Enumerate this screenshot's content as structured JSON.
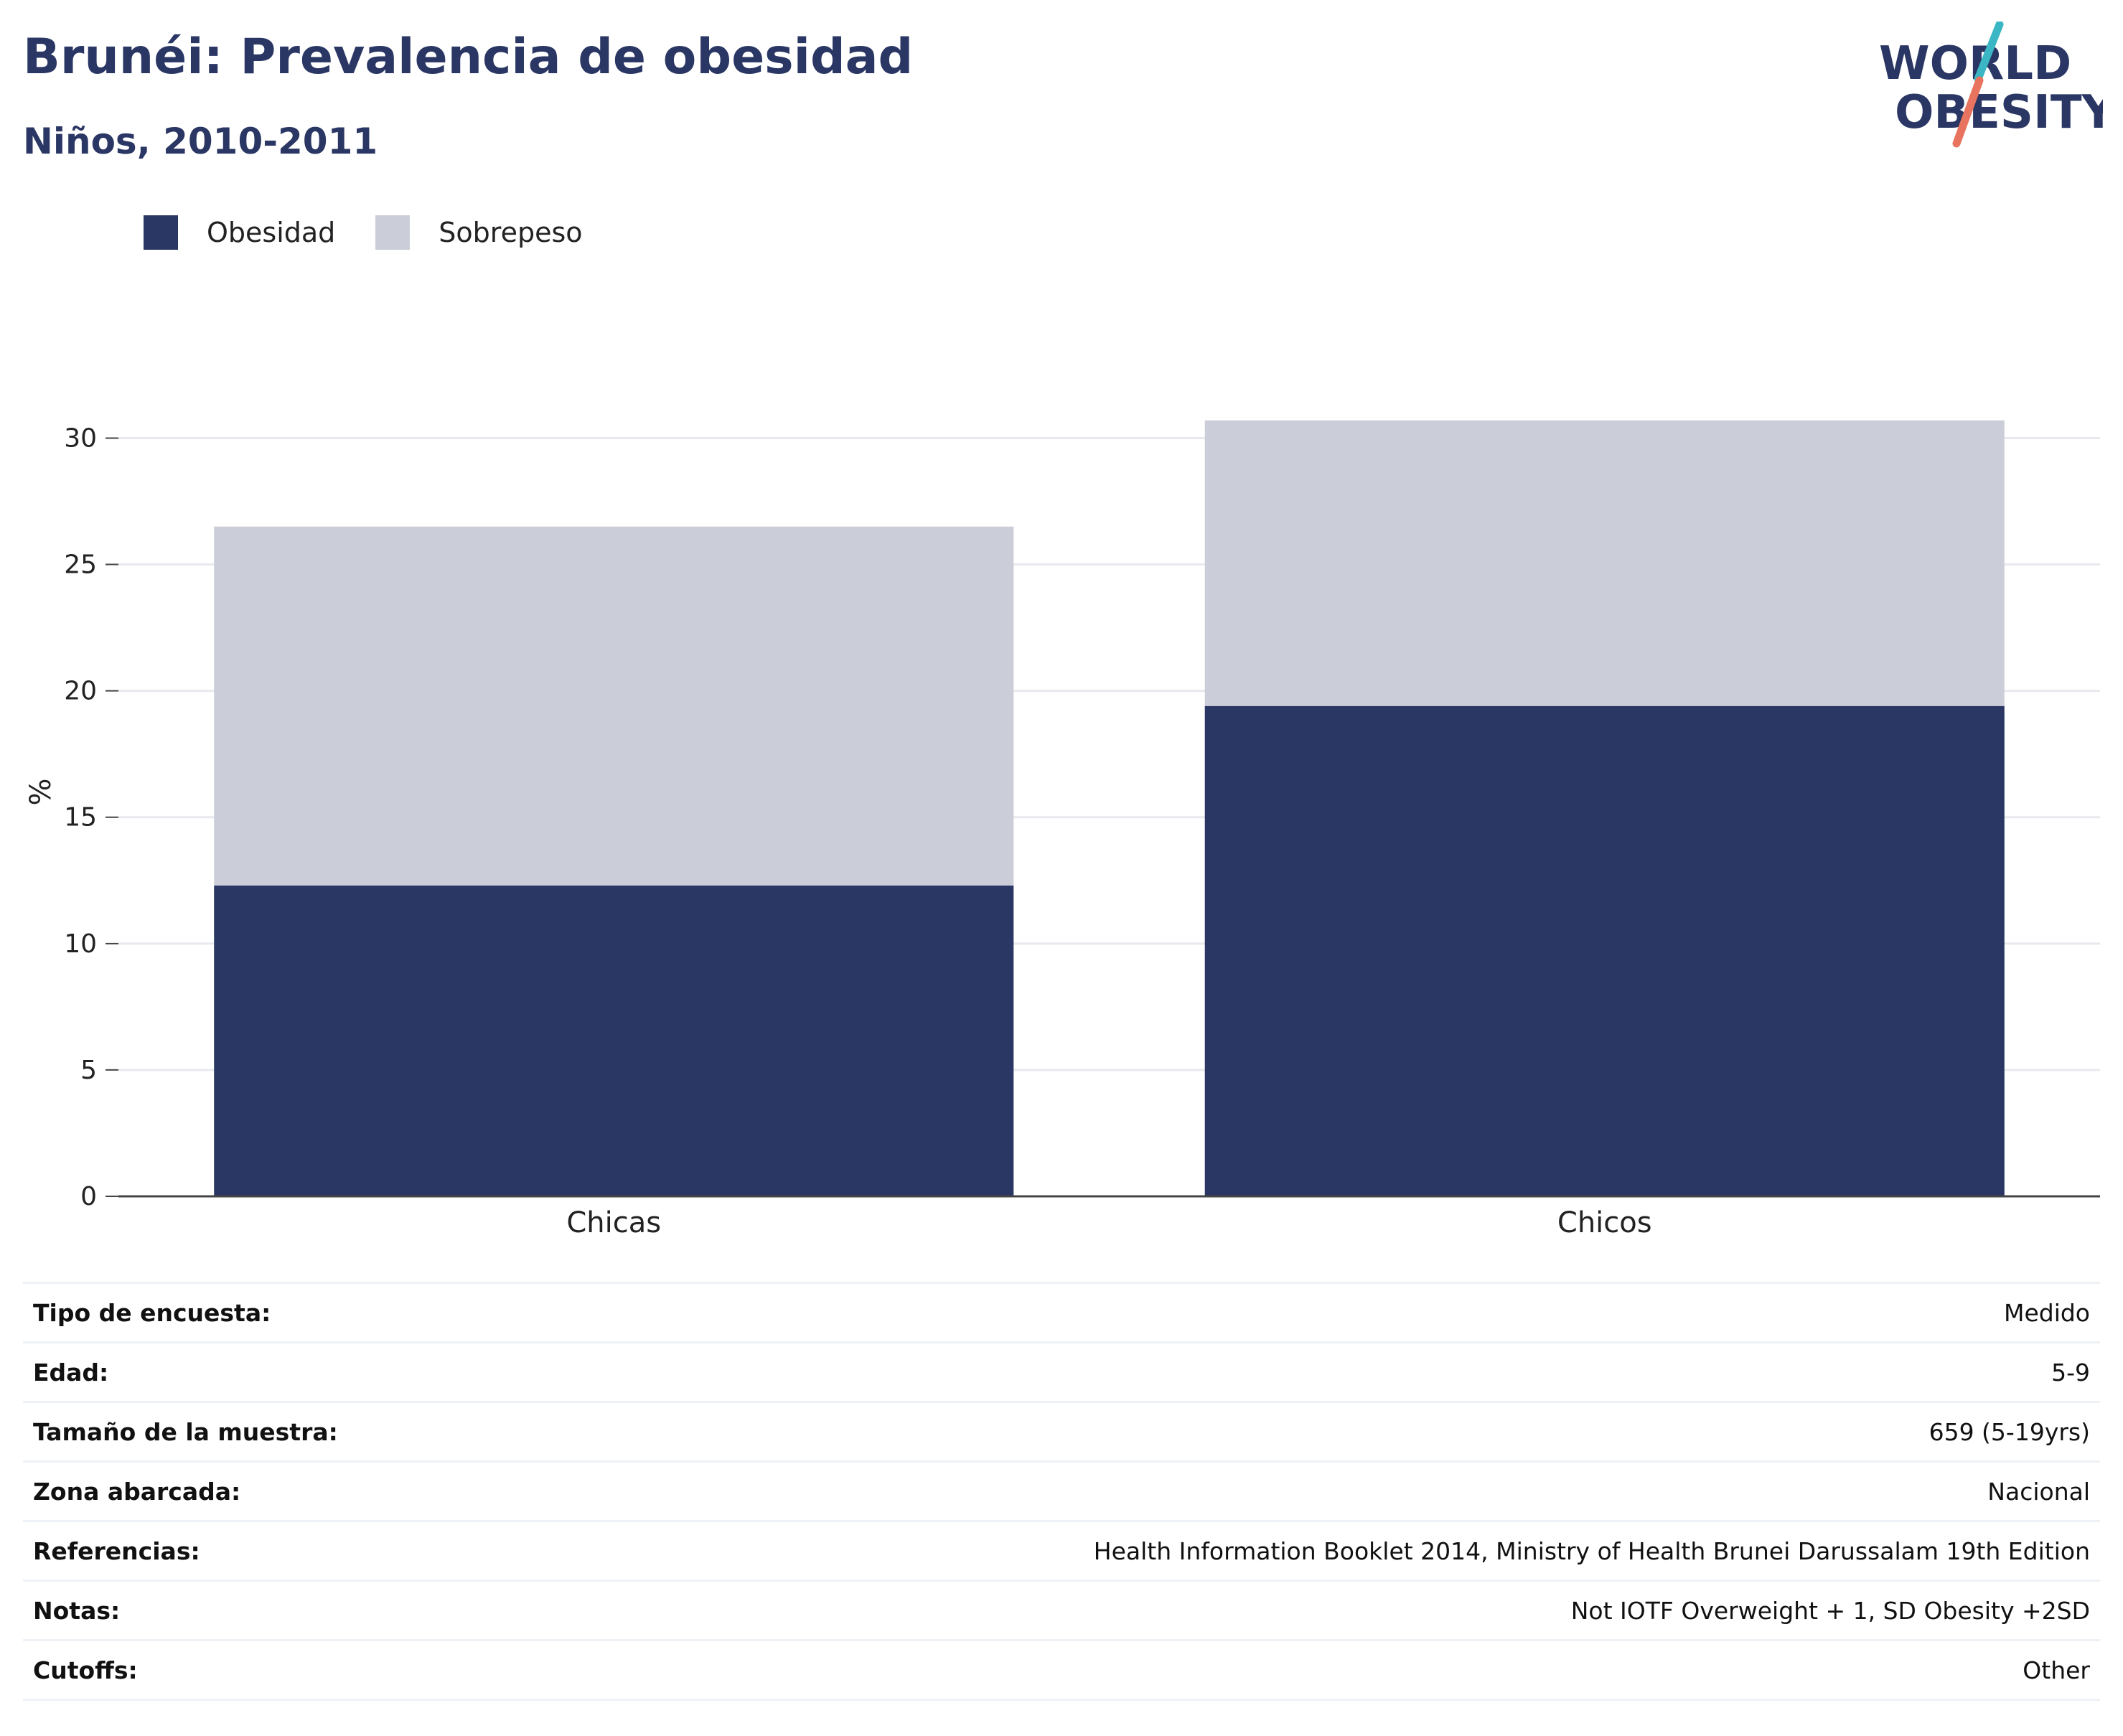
{
  "header": {
    "title": "Brunéi: Prevalencia de obesidad",
    "subtitle": "Niños, 2010-2011"
  },
  "logo": {
    "line1": "WORLD",
    "line2": "OBESITY",
    "accent_teal": "#3bb6c4",
    "accent_coral": "#e8735f"
  },
  "colors": {
    "obesidad": "#2a3663",
    "sobrepeso": "#cbcdd8",
    "text": "#2a3663"
  },
  "legend": {
    "items": [
      {
        "label": "Obesidad",
        "color": "#2a3663"
      },
      {
        "label": "Sobrepeso",
        "color": "#cbcdd8"
      }
    ]
  },
  "chart_data": {
    "type": "bar",
    "stacked": true,
    "categories": [
      "Chicas",
      "Chicos"
    ],
    "series": [
      {
        "name": "Obesidad",
        "values": [
          12.3,
          19.4
        ],
        "color": "#2a3663"
      },
      {
        "name": "Sobrepeso",
        "values": [
          14.2,
          11.3
        ],
        "color": "#cbcdd8"
      }
    ],
    "title": "Brunéi: Prevalencia de obesidad",
    "subtitle": "Niños, 2010-2011",
    "xlabel": "",
    "ylabel": "%",
    "ylim": [
      0,
      32
    ],
    "yticks": [
      0,
      5,
      10,
      15,
      20,
      25,
      30
    ],
    "grid": true,
    "legend_position": "top-left"
  },
  "info": {
    "rows": [
      {
        "label": "Tipo de encuesta:",
        "value": "Medido"
      },
      {
        "label": "Edad:",
        "value": "5-9"
      },
      {
        "label": "Tamaño de la muestra:",
        "value": "659 (5-19yrs)"
      },
      {
        "label": "Zona abarcada:",
        "value": "Nacional"
      },
      {
        "label": "Referencias:",
        "value": "Health Information Booklet 2014, Ministry of Health Brunei Darussalam 19th Edition"
      },
      {
        "label": "Notas:",
        "value": "Not IOTF Overweight + 1, SD Obesity +2SD"
      },
      {
        "label": "Cutoffs:",
        "value": "Other"
      }
    ]
  }
}
